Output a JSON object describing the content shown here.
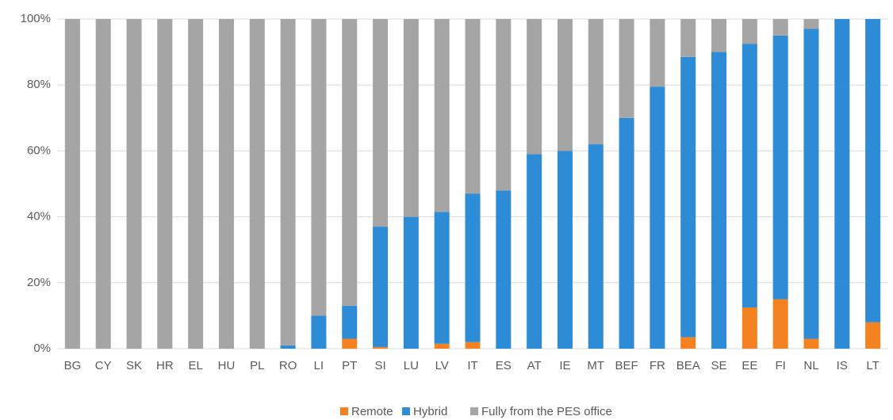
{
  "chart_data": {
    "type": "stacked_bar",
    "categories": [
      "BG",
      "CY",
      "SK",
      "HR",
      "EL",
      "HU",
      "PL",
      "RO",
      "LI",
      "PT",
      "SI",
      "LU",
      "LV",
      "IT",
      "ES",
      "AT",
      "IE",
      "MT",
      "BEF",
      "FR",
      "BEA",
      "SE",
      "EE",
      "FI",
      "NL",
      "IS",
      "LT"
    ],
    "series": [
      {
        "name": "Remote",
        "color": "#f58220",
        "values": [
          0,
          0,
          0,
          0,
          0,
          0,
          0,
          0,
          0,
          3,
          0.5,
          0,
          1.5,
          2,
          0,
          0,
          0,
          0,
          0,
          0,
          3.5,
          0,
          12.5,
          15,
          3,
          0,
          8
        ]
      },
      {
        "name": "Hybrid",
        "color": "#2e8bd6",
        "values": [
          0,
          0,
          0,
          0,
          0,
          0,
          0,
          1,
          10,
          10,
          36.5,
          40,
          40,
          45,
          48,
          59,
          60,
          62,
          70,
          79.5,
          85,
          90,
          80,
          80,
          94,
          100,
          92
        ]
      },
      {
        "name": "Fully from the PES office",
        "color": "#a5a5a5",
        "values": [
          100,
          100,
          100,
          100,
          100,
          100,
          100,
          99,
          90,
          87,
          63,
          60,
          58.5,
          53,
          52,
          41,
          40,
          38,
          30,
          20.5,
          11.5,
          10,
          7.5,
          5,
          3,
          0,
          0
        ]
      }
    ],
    "ylim": [
      0,
      100
    ],
    "yticks": [
      {
        "value": 0,
        "label": "0%"
      },
      {
        "value": 20,
        "label": "20%"
      },
      {
        "value": 40,
        "label": "40%"
      },
      {
        "value": 60,
        "label": "60%"
      },
      {
        "value": 80,
        "label": "80%"
      },
      {
        "value": 100,
        "label": "100%"
      }
    ],
    "grid": true,
    "legend": "bottom"
  }
}
